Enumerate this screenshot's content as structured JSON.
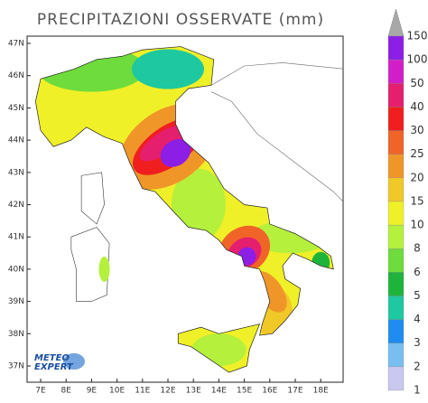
{
  "title": "PRECIPITAZIONI OSSERVATE (mm)",
  "axes": {
    "lat_labels": [
      "47N",
      "46N",
      "45N",
      "44N",
      "43N",
      "42N",
      "41N",
      "40N",
      "39N",
      "38N",
      "37N"
    ],
    "lon_labels": [
      "7E",
      "8E",
      "9E",
      "10E",
      "11E",
      "12E",
      "13E",
      "14E",
      "15E",
      "16E",
      "17E",
      "18E"
    ]
  },
  "colorbar": {
    "levels": [
      1,
      2,
      3,
      4,
      5,
      6,
      8,
      10,
      15,
      20,
      25,
      30,
      40,
      50,
      100,
      150
    ],
    "colors": [
      "#c8c8f0",
      "#78bef0",
      "#1e8cf0",
      "#1ec8a0",
      "#1eb43c",
      "#6edc3c",
      "#b4f03c",
      "#f0f028",
      "#f0c828",
      "#f09628",
      "#f06428",
      "#f01e1e",
      "#e61e6e",
      "#d21ec8",
      "#8c1ee6"
    ],
    "over_color": "#a8a8a8"
  },
  "logo": {
    "line1": "METEO",
    "line2": "EXPERT"
  }
}
